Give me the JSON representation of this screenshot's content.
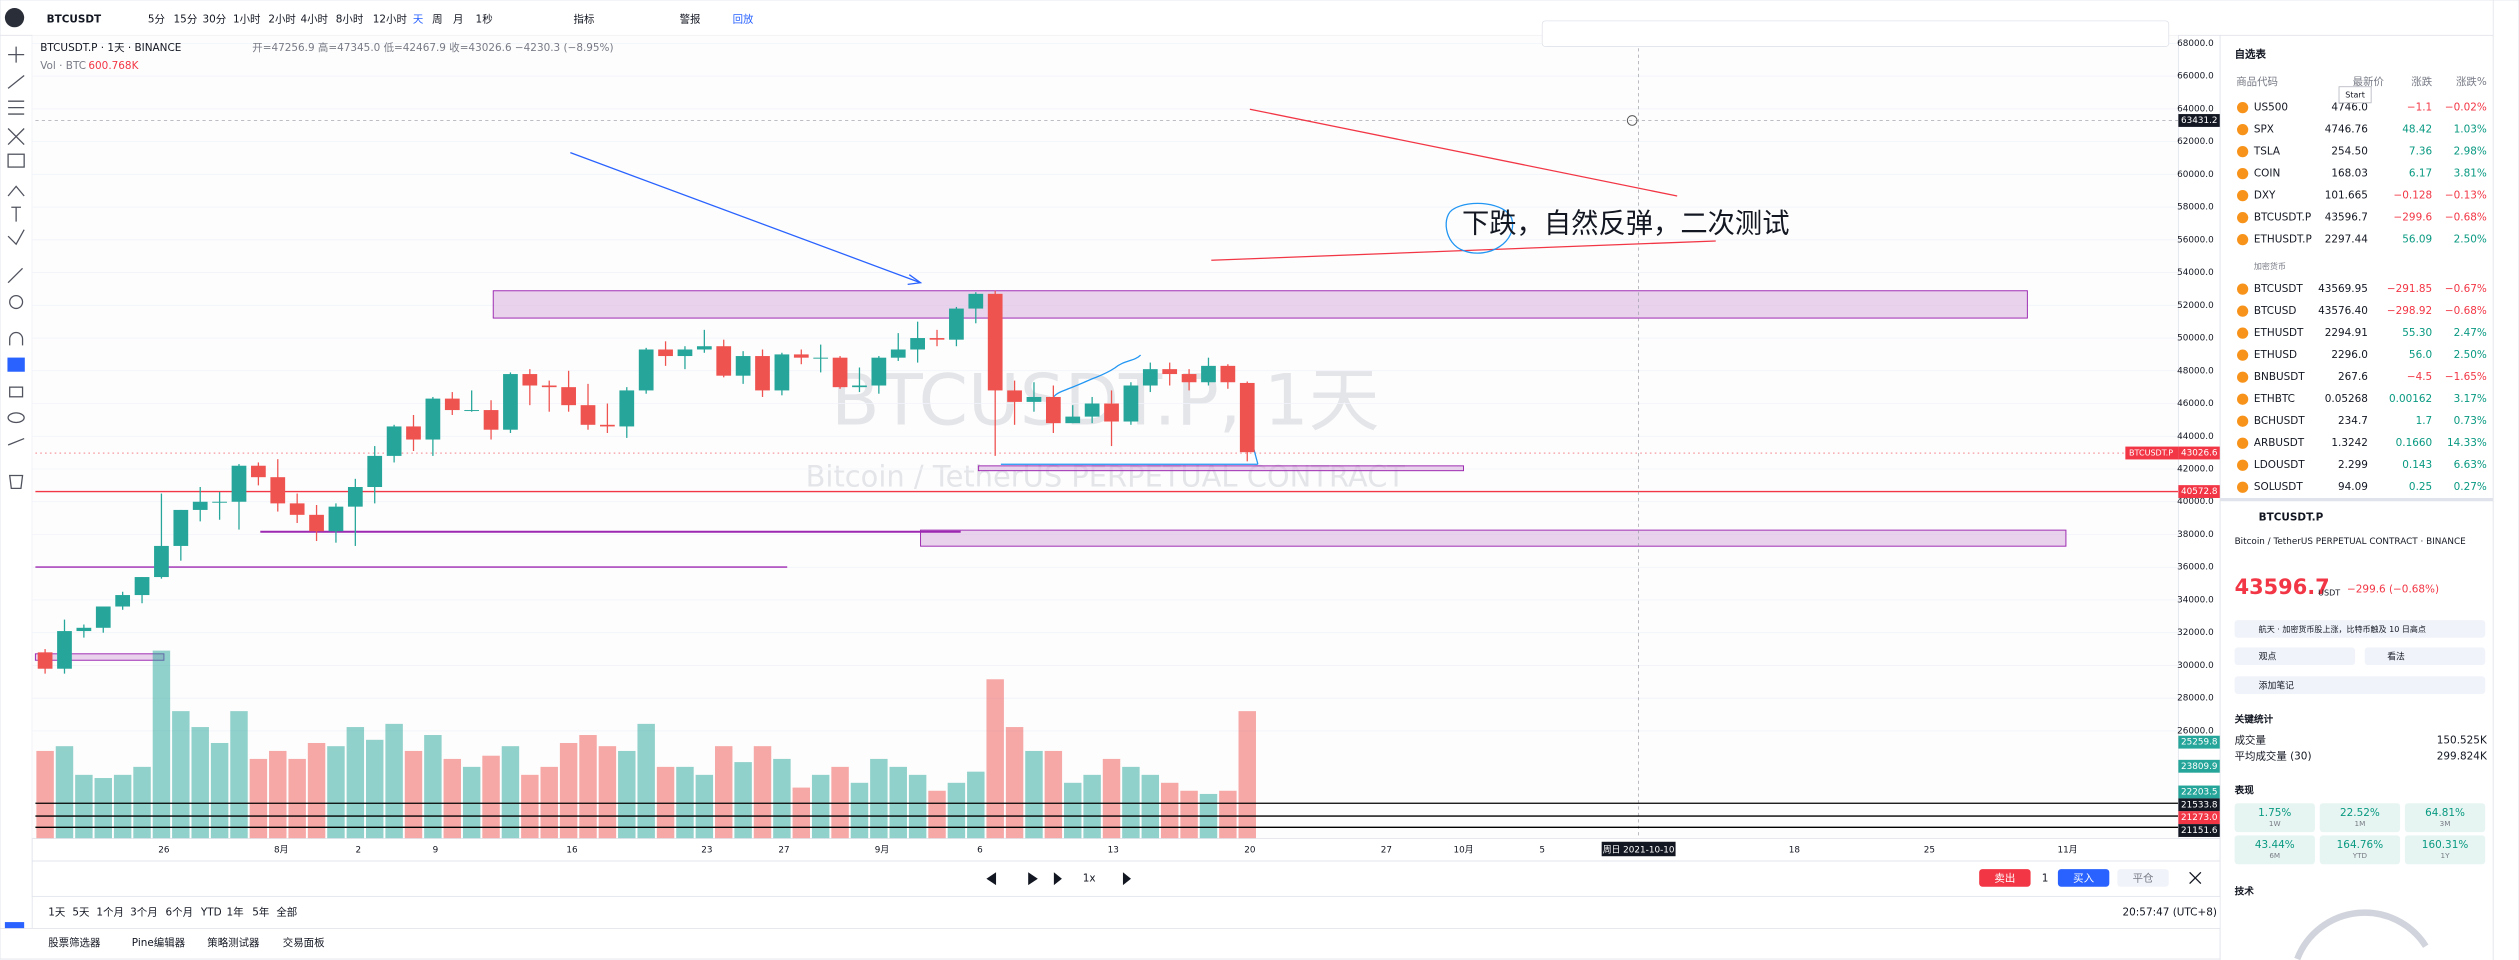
{
  "top_bar": {
    "symbol": "BTCUSDT",
    "intervals": [
      "5分",
      "15分",
      "30分",
      "1小时",
      "2小时",
      "4小时",
      "8小时",
      "12小时",
      "天",
      "周",
      "月",
      "1秒"
    ],
    "indicators": "指标",
    "alert": "警报",
    "replay": "回放"
  },
  "chart": {
    "legend": "BTCUSDT.P · 1天 · BINANCE",
    "ohlc": "开=47256.9 高=47345.0 低=42467.9 收=43026.6 −4230.3 (−8.95%)",
    "volume_legend": "Vol · BTC",
    "volume_value": "600.768K",
    "watermark": "BTCUSDT.P, 1天",
    "watermark_sub": "Bitcoin / TetherUS PERPETUAL CONTRACT",
    "annotation": "下跌，自然反弹，二次测试",
    "candles": [
      [
        30800,
        31000,
        29500,
        29800
      ],
      [
        29800,
        32800,
        29500,
        32100
      ],
      [
        32100,
        32500,
        31700,
        32300
      ],
      [
        32300,
        33600,
        32000,
        33600
      ],
      [
        33600,
        34500,
        33400,
        34300
      ],
      [
        34300,
        35400,
        33800,
        35400
      ],
      [
        35400,
        40500,
        35300,
        37300
      ],
      [
        37300,
        39500,
        36400,
        39500
      ],
      [
        39500,
        40900,
        38800,
        40000
      ],
      [
        40000,
        40600,
        38900,
        40000
      ],
      [
        40000,
        42300,
        38300,
        42200
      ],
      [
        42200,
        42400,
        41000,
        41500
      ],
      [
        41500,
        42600,
        39400,
        39900
      ],
      [
        39900,
        40500,
        38700,
        39200
      ],
      [
        39200,
        39800,
        37600,
        38200
      ],
      [
        38200,
        39900,
        37500,
        39700
      ],
      [
        39700,
        41400,
        37300,
        40900
      ],
      [
        40900,
        43400,
        39900,
        42800
      ],
      [
        42800,
        44700,
        42400,
        44600
      ],
      [
        44600,
        45300,
        43100,
        43800
      ],
      [
        43800,
        46400,
        42800,
        46300
      ],
      [
        46300,
        46700,
        45300,
        45600
      ],
      [
        45600,
        46800,
        45500,
        45600
      ],
      [
        45600,
        46200,
        43800,
        44400
      ],
      [
        44400,
        47900,
        44200,
        47800
      ],
      [
        47800,
        48100,
        45900,
        47100
      ],
      [
        47100,
        47400,
        45500,
        47000
      ],
      [
        47000,
        48000,
        45500,
        45900
      ],
      [
        45900,
        47200,
        44400,
        44700
      ],
      [
        44700,
        46000,
        44200,
        44600
      ],
      [
        44600,
        47000,
        43900,
        46800
      ],
      [
        46800,
        49400,
        46600,
        49300
      ],
      [
        49300,
        49800,
        48300,
        48900
      ],
      [
        48900,
        49500,
        48100,
        49300
      ],
      [
        49300,
        50500,
        49100,
        49500
      ],
      [
        49500,
        49900,
        47600,
        47700
      ],
      [
        47700,
        49200,
        47200,
        48900
      ],
      [
        48900,
        49300,
        46400,
        46800
      ],
      [
        46800,
        49100,
        46500,
        49000
      ],
      [
        49000,
        49300,
        48400,
        48800
      ],
      [
        48800,
        49600,
        47900,
        48800
      ],
      [
        48800,
        48900,
        46900,
        47000
      ],
      [
        47000,
        48200,
        46700,
        47100
      ],
      [
        47100,
        48900,
        46600,
        48800
      ],
      [
        48800,
        50300,
        48600,
        49300
      ],
      [
        49300,
        51000,
        48500,
        50000
      ],
      [
        50000,
        50500,
        49500,
        49900
      ],
      [
        49900,
        51900,
        49500,
        51800
      ],
      [
        51800,
        52800,
        50900,
        52700
      ],
      [
        52700,
        52900,
        42800,
        46800
      ],
      [
        46800,
        47400,
        44700,
        46100
      ],
      [
        46100,
        47300,
        45500,
        46400
      ],
      [
        46400,
        47100,
        44200,
        44800
      ],
      [
        44800,
        45900,
        44800,
        45200
      ],
      [
        45200,
        46400,
        44800,
        46000
      ],
      [
        46000,
        46800,
        43400,
        44900
      ],
      [
        44900,
        47300,
        44700,
        47100
      ],
      [
        47100,
        48500,
        46700,
        48100
      ],
      [
        48100,
        48500,
        47100,
        47800
      ],
      [
        47800,
        48100,
        46800,
        47300
      ],
      [
        47300,
        48800,
        47100,
        48300
      ],
      [
        48300,
        48400,
        46900,
        47300
      ],
      [
        47256.9,
        47345.0,
        42467.9,
        43026.6
      ]
    ],
    "volume": [
      55,
      58,
      40,
      38,
      40,
      45,
      118,
      80,
      70,
      60,
      80,
      50,
      55,
      50,
      60,
      58,
      70,
      62,
      72,
      55,
      65,
      50,
      45,
      52,
      58,
      40,
      45,
      60,
      65,
      58,
      55,
      72,
      45,
      45,
      40,
      58,
      48,
      58,
      50,
      32,
      40,
      45,
      35,
      50,
      45,
      40,
      30,
      35,
      42,
      100,
      70,
      55,
      55,
      35,
      40,
      50,
      45,
      40,
      35,
      30,
      28,
      30,
      80
    ],
    "ylim": [
      26000,
      68000
    ],
    "yticks": [
      {
        "value": 68000,
        "label": "68000.0"
      },
      {
        "value": 66000,
        "label": "66000.0"
      },
      {
        "value": 64000,
        "label": "64000.0"
      },
      {
        "value": 62000,
        "label": "62000.0"
      },
      {
        "value": 60000,
        "label": "60000.0"
      },
      {
        "value": 58000,
        "label": "58000.0"
      },
      {
        "value": 56000,
        "label": "56000.0"
      },
      {
        "value": 54000,
        "label": "54000.0"
      },
      {
        "value": 52000,
        "label": "52000.0"
      },
      {
        "value": 50000,
        "label": "50000.0"
      },
      {
        "value": 48000,
        "label": "48000.0"
      },
      {
        "value": 46000,
        "label": "46000.0"
      },
      {
        "value": 44000,
        "label": "44000.0"
      },
      {
        "value": 42000,
        "label": "42000.0"
      },
      {
        "value": 40000,
        "label": "40000.0"
      },
      {
        "value": 38000,
        "label": "38000.0"
      },
      {
        "value": 36000,
        "label": "36000.0"
      },
      {
        "value": 34000,
        "label": "34000.0"
      },
      {
        "value": 32000,
        "label": "32000.0"
      },
      {
        "value": 30000,
        "label": "30000.0"
      },
      {
        "value": 28000,
        "label": "28000.0"
      },
      {
        "value": 26000,
        "label": "26000.0"
      }
    ],
    "price_badges": [
      "63431.2",
      "43026.6",
      "40572.8",
      "25259.8",
      "23809.9",
      "22203.5",
      "21533.8",
      "21273.0",
      "21151.6"
    ],
    "symbol_badge": "BTCUSDT.P",
    "time_labels": [
      "26",
      "8月",
      "2",
      "9",
      "16",
      "23",
      "27",
      "9月",
      "6",
      "13",
      "20",
      "27",
      "10月",
      "5",
      "周日 2021-10-10",
      "18",
      "25",
      "11月"
    ]
  },
  "bottom": {
    "ranges": [
      "1天",
      "5天",
      "1个月",
      "3个月",
      "6个月",
      "YTD",
      "1年",
      "5年",
      "全部"
    ],
    "clock": "20:57:47 (UTC+8)",
    "tabs": [
      "股票筛选器",
      "Pine编辑器",
      "策略测试器",
      "交易面板"
    ],
    "sell": "卖出",
    "qty": "1",
    "buy": "买入",
    "close": "平仓",
    "speed": "1x"
  },
  "watchlist": {
    "title": "自选表",
    "headers": [
      "商品代码",
      "最新价",
      "涨跌",
      "涨跌%"
    ],
    "popup": "Start",
    "section": "加密货币",
    "rows": [
      [
        "US500",
        "4746.0",
        "−1.1",
        "−0.02%"
      ],
      [
        "SPX",
        "4746.76",
        "48.42",
        "1.03%"
      ],
      [
        "TSLA",
        "254.50",
        "7.36",
        "2.98%"
      ],
      [
        "COIN",
        "168.03",
        "6.17",
        "3.81%"
      ],
      [
        "DXY",
        "101.665",
        "−0.128",
        "−0.13%"
      ],
      [
        "BTCUSDT.P",
        "43596.7",
        "−299.6",
        "−0.68%"
      ],
      [
        "ETHUSDT.P",
        "2297.44",
        "56.09",
        "2.50%"
      ]
    ],
    "crypto_rows": [
      [
        "BTCUSDT",
        "43569.95",
        "−291.85",
        "−0.67%"
      ],
      [
        "BTCUSD",
        "43576.40",
        "−298.92",
        "−0.68%"
      ],
      [
        "ETHUSDT",
        "2294.91",
        "55.30",
        "2.47%"
      ],
      [
        "ETHUSD",
        "2296.0",
        "56.0",
        "2.50%"
      ],
      [
        "BNBUSDT",
        "267.6",
        "−4.5",
        "−1.65%"
      ],
      [
        "ETHBTC",
        "0.05268",
        "0.00162",
        "3.17%"
      ],
      [
        "BCHUSDT",
        "234.7",
        "1.7",
        "0.73%"
      ],
      [
        "ARBUSDT",
        "1.3242",
        "0.1660",
        "14.33%"
      ],
      [
        "LDOUSDT",
        "2.299",
        "0.143",
        "6.63%"
      ],
      [
        "SOLUSDT",
        "94.09",
        "0.25",
        "0.27%"
      ]
    ]
  },
  "details": {
    "symbol": "BTCUSDT.P",
    "description": "Bitcoin / TetherUS PERPETUAL CONTRACT · BINANCE",
    "price": "43596.7",
    "currency": "USDT",
    "change": "−299.6 (−0.68%)",
    "news": "航天 · 加密货币股上涨，比特币触及 10 日高点",
    "ideas": "观点",
    "opinion": "看法",
    "note": "添加笔记",
    "stats_title": "关键统计",
    "stats": [
      [
        "成交量",
        "150.525K"
      ],
      [
        "平均成交量 (30)",
        "299.824K"
      ]
    ],
    "perf_title": "表现",
    "perf": [
      [
        "1.75%",
        "1W"
      ],
      [
        "22.52%",
        "1M"
      ],
      [
        "64.81%",
        "3M"
      ],
      [
        "43.44%",
        "6M"
      ],
      [
        "164.76%",
        "YTD"
      ],
      [
        "160.31%",
        "1Y"
      ]
    ],
    "tech_title": "技术"
  }
}
